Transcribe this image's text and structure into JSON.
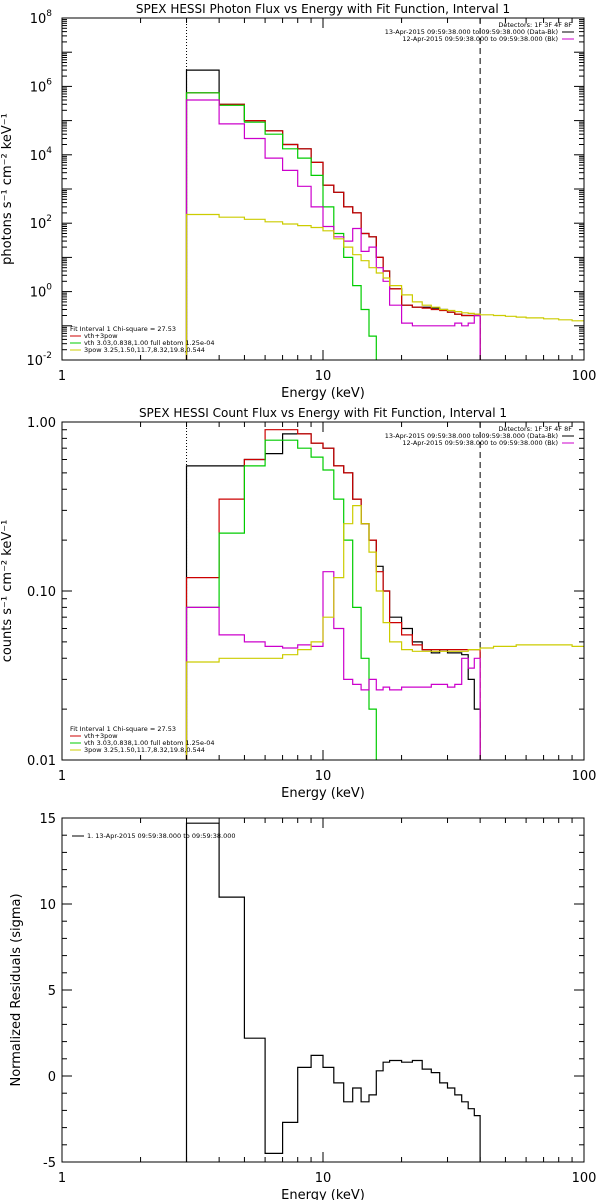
{
  "chart_data": [
    {
      "type": "line",
      "title": "SPEX HESSI Photon Flux vs Energy with Fit Function, Interval 1",
      "xlabel": "Energy (keV)",
      "ylabel": "photons s⁻¹ cm⁻² keV⁻¹",
      "xscale": "log",
      "yscale": "log",
      "xlim": [
        1,
        100
      ],
      "ylim": [
        0.01,
        100000000
      ],
      "xticks": [
        {
          "value": 1,
          "label": "1"
        },
        {
          "value": 10,
          "label": "10"
        },
        {
          "value": 100,
          "label": "100"
        }
      ],
      "yticks": [
        {
          "value": 0.01,
          "base": "10",
          "exp": "-2"
        },
        {
          "value": 1,
          "base": "10",
          "exp": "0"
        },
        {
          "value": 100,
          "base": "10",
          "exp": "2"
        },
        {
          "value": 10000,
          "base": "10",
          "exp": "4"
        },
        {
          "value": 1000000,
          "base": "10",
          "exp": "6"
        },
        {
          "value": 100000000,
          "base": "10",
          "exp": "8"
        }
      ],
      "vlines": [
        {
          "x": 3,
          "style": "dotted"
        },
        {
          "x": 40,
          "style": "dashed"
        }
      ],
      "legend_topright": [
        {
          "text": "Detectors: 1F 3F 4F 8F",
          "color": ""
        },
        {
          "text": "13-Apr-2015 09:59:38.000 to 09:59:38.000 (Data-Bk)",
          "color": "#000000"
        },
        {
          "text": "12-Apr-2015 09:59:38.000 to 09:59:38.000 (Bk)",
          "color": "#cc00cc"
        }
      ],
      "legend_bottomleft": [
        {
          "text": "Fit Interval 1    Chi-square = 27.53",
          "color": ""
        },
        {
          "text": "vth+3pow",
          "color": "#cc0000"
        },
        {
          "text": "vth 3.03,0.838,1.00   full ebtom 1.25e-04",
          "color": "#00cc00"
        },
        {
          "text": "3pow 3.25,1.50,11.7,8.32,19.8,0.544",
          "color": "#cccc00"
        }
      ],
      "series": [
        {
          "color": "#000000",
          "edges": [
            3,
            4,
            5,
            6,
            7,
            8,
            9,
            10,
            11,
            12,
            13,
            14,
            15,
            16,
            17,
            18,
            20,
            22,
            24,
            26,
            28,
            30,
            32,
            34,
            36,
            38,
            40
          ],
          "values": [
            3000000,
            300000,
            100000,
            50000,
            20000,
            15000,
            6000,
            1300,
            800,
            300,
            200,
            50,
            40,
            10,
            4,
            1.2,
            0.4,
            0.35,
            0.35,
            0.33,
            0.3,
            0.25,
            0.22,
            0.2,
            0.2,
            0.2
          ]
        },
        {
          "color": "#cc0000",
          "edges": [
            3,
            4,
            5,
            6,
            7,
            8,
            9,
            10,
            11,
            12,
            13,
            14,
            15,
            16,
            17,
            18,
            20,
            22,
            24,
            26,
            28,
            30,
            32,
            34,
            36,
            38,
            40
          ],
          "values": [
            650000,
            300000,
            100000,
            50000,
            20000,
            15000,
            6000,
            1300,
            800,
            300,
            200,
            50,
            40,
            10,
            4,
            1.2,
            0.4,
            0.35,
            0.33,
            0.3,
            0.28,
            0.25,
            0.22,
            0.2,
            0.2,
            0.2
          ]
        },
        {
          "color": "#00cc00",
          "edges": [
            3,
            4,
            5,
            6,
            7,
            8,
            9,
            10,
            11,
            12,
            13,
            14,
            15,
            16
          ],
          "values": [
            650000,
            280000,
            90000,
            40000,
            15000,
            8000,
            2500,
            300,
            50,
            10,
            1.5,
            0.3,
            0.05
          ]
        },
        {
          "color": "#cc00cc",
          "edges": [
            3,
            4,
            5,
            6,
            7,
            8,
            9,
            10,
            11,
            12,
            13,
            14,
            15,
            16,
            17,
            18,
            20,
            22,
            24,
            26,
            28,
            30,
            32,
            34,
            36,
            38,
            40
          ],
          "values": [
            400000,
            80000,
            30000,
            8000,
            3500,
            1200,
            300,
            80,
            40,
            30,
            70,
            15,
            20,
            5,
            2,
            0.4,
            0.12,
            0.1,
            0.1,
            0.1,
            0.1,
            0.1,
            0.12,
            0.1,
            0.12,
            0.2
          ]
        },
        {
          "color": "#cccc00",
          "edges": [
            3,
            4,
            5,
            6,
            7,
            8,
            9,
            10,
            11,
            12,
            13,
            14,
            15,
            16,
            17,
            18,
            20,
            22,
            24,
            26,
            28,
            30,
            32,
            34,
            36,
            38,
            40,
            45,
            50,
            55,
            60,
            70,
            80,
            90,
            100
          ],
          "values": [
            180,
            150,
            130,
            110,
            95,
            85,
            75,
            60,
            35,
            20,
            12,
            8,
            5,
            3.5,
            2.5,
            1.5,
            0.8,
            0.5,
            0.4,
            0.35,
            0.3,
            0.28,
            0.26,
            0.24,
            0.23,
            0.22,
            0.21,
            0.2,
            0.19,
            0.18,
            0.17,
            0.16,
            0.15,
            0.14
          ]
        }
      ]
    },
    {
      "type": "line",
      "title": "SPEX HESSI Count Flux vs Energy with Fit Function, Interval 1",
      "xlabel": "Energy (keV)",
      "ylabel": "counts s⁻¹ cm⁻² keV⁻¹",
      "xscale": "log",
      "yscale": "log",
      "xlim": [
        1,
        100
      ],
      "ylim": [
        0.01,
        1
      ],
      "xticks": [
        {
          "value": 1,
          "label": "1"
        },
        {
          "value": 10,
          "label": "10"
        },
        {
          "value": 100,
          "label": "100"
        }
      ],
      "yticks": [
        {
          "value": 0.01,
          "label": "0.01"
        },
        {
          "value": 0.1,
          "label": "0.10"
        },
        {
          "value": 1,
          "label": "1.00"
        }
      ],
      "vlines": [
        {
          "x": 3,
          "style": "dotted"
        },
        {
          "x": 40,
          "style": "dashed"
        }
      ],
      "legend_topright": [
        {
          "text": "Detectors: 1F 3F 4F 8F",
          "color": ""
        },
        {
          "text": "13-Apr-2015 09:59:38.000 to 09:59:38.000 (Data-Bk)",
          "color": "#000000"
        },
        {
          "text": "12-Apr-2015 09:59:38.000 to 09:59:38.000 (Bk)",
          "color": "#cc00cc"
        }
      ],
      "legend_bottomleft": [
        {
          "text": "Fit Interval 1    Chi-square = 27.53",
          "color": ""
        },
        {
          "text": "vth+3pow",
          "color": "#cc0000"
        },
        {
          "text": "vth 3.03,0.838,1.00   full ebtom 1.25e-04",
          "color": "#00cc00"
        },
        {
          "text": "3pow 3.25,1.50,11.7,8.32,19.8,0.544",
          "color": "#cccc00"
        }
      ],
      "series": [
        {
          "color": "#000000",
          "edges": [
            3,
            4,
            5,
            6,
            7,
            8,
            9,
            10,
            11,
            12,
            13,
            14,
            15,
            16,
            17,
            18,
            20,
            22,
            24,
            26,
            28,
            30,
            32,
            34,
            36,
            38,
            40
          ],
          "values": [
            0.55,
            0.55,
            0.6,
            0.65,
            0.85,
            0.85,
            0.75,
            0.7,
            0.55,
            0.5,
            0.35,
            0.25,
            0.2,
            0.14,
            0.1,
            0.07,
            0.06,
            0.05,
            0.045,
            0.043,
            0.045,
            0.043,
            0.043,
            0.042,
            0.03,
            0.02
          ]
        },
        {
          "color": "#cc0000",
          "edges": [
            3,
            4,
            5,
            6,
            7,
            8,
            9,
            10,
            11,
            12,
            13,
            14,
            15,
            16,
            17,
            18,
            20,
            22,
            24,
            26,
            28,
            30,
            32,
            34,
            36,
            38,
            40
          ],
          "values": [
            0.12,
            0.35,
            0.6,
            0.9,
            0.9,
            0.85,
            0.75,
            0.7,
            0.55,
            0.5,
            0.35,
            0.25,
            0.2,
            0.13,
            0.1,
            0.065,
            0.055,
            0.048,
            0.045,
            0.045,
            0.045,
            0.045,
            0.045,
            0.045,
            0.045,
            0.045
          ]
        },
        {
          "color": "#00cc00",
          "edges": [
            3,
            4,
            5,
            6,
            7,
            8,
            9,
            10,
            11,
            12,
            13,
            14,
            15,
            16
          ],
          "values": [
            0.08,
            0.22,
            0.55,
            0.78,
            0.78,
            0.7,
            0.62,
            0.52,
            0.35,
            0.2,
            0.08,
            0.04,
            0.02
          ]
        },
        {
          "color": "#cc00cc",
          "edges": [
            3,
            4,
            5,
            6,
            7,
            8,
            9,
            10,
            11,
            12,
            13,
            14,
            15,
            16,
            17,
            18,
            20,
            22,
            24,
            26,
            28,
            30,
            32,
            34,
            36,
            38,
            40
          ],
          "values": [
            0.08,
            0.055,
            0.05,
            0.047,
            0.046,
            0.048,
            0.047,
            0.13,
            0.06,
            0.03,
            0.028,
            0.026,
            0.03,
            0.026,
            0.027,
            0.026,
            0.027,
            0.027,
            0.027,
            0.028,
            0.028,
            0.027,
            0.028,
            0.04,
            0.035,
            0.04
          ]
        },
        {
          "color": "#cccc00",
          "edges": [
            3,
            4,
            5,
            6,
            7,
            8,
            9,
            10,
            11,
            12,
            13,
            14,
            15,
            16,
            17,
            18,
            20,
            22,
            24,
            26,
            28,
            30,
            32,
            34,
            36,
            38,
            40,
            45,
            50,
            55,
            60,
            70,
            80,
            90,
            100
          ],
          "values": [
            0.038,
            0.04,
            0.04,
            0.04,
            0.042,
            0.045,
            0.05,
            0.07,
            0.12,
            0.25,
            0.32,
            0.25,
            0.17,
            0.1,
            0.065,
            0.05,
            0.045,
            0.044,
            0.044,
            0.044,
            0.044,
            0.044,
            0.044,
            0.044,
            0.045,
            0.045,
            0.046,
            0.047,
            0.047,
            0.048,
            0.048,
            0.048,
            0.048,
            0.047
          ]
        }
      ]
    },
    {
      "type": "line",
      "title": "",
      "xlabel": "Energy (keV)",
      "ylabel": "Normalized Residuals (sigma)",
      "xscale": "log",
      "yscale": "linear",
      "xlim": [
        1,
        100
      ],
      "ylim": [
        -5,
        15
      ],
      "xticks": [
        {
          "value": 1,
          "label": "1"
        },
        {
          "value": 10,
          "label": "10"
        },
        {
          "value": 100,
          "label": "100"
        }
      ],
      "yticks": [
        {
          "value": -5,
          "label": "-5"
        },
        {
          "value": 0,
          "label": "0"
        },
        {
          "value": 5,
          "label": "5"
        },
        {
          "value": 10,
          "label": "10"
        },
        {
          "value": 15,
          "label": "15"
        }
      ],
      "legend_topleft": [
        {
          "text": "1. 13-Apr-2015 09:59:38.000 to 09:59:38.000",
          "color": "#000000"
        }
      ],
      "series": [
        {
          "color": "#000000",
          "edges": [
            3,
            4,
            5,
            6,
            7,
            8,
            9,
            10,
            11,
            12,
            13,
            14,
            15,
            16,
            17,
            18,
            20,
            22,
            24,
            26,
            28,
            30,
            32,
            34,
            36,
            38,
            40
          ],
          "values": [
            14.7,
            10.4,
            2.2,
            -4.5,
            -2.7,
            0.5,
            1.2,
            0.5,
            -0.4,
            -1.5,
            -0.7,
            -1.5,
            -1.1,
            0.3,
            0.8,
            0.9,
            0.8,
            0.9,
            0.4,
            0.2,
            -0.4,
            -0.7,
            -1.1,
            -1.5,
            -1.9,
            -2.3
          ]
        }
      ]
    }
  ]
}
